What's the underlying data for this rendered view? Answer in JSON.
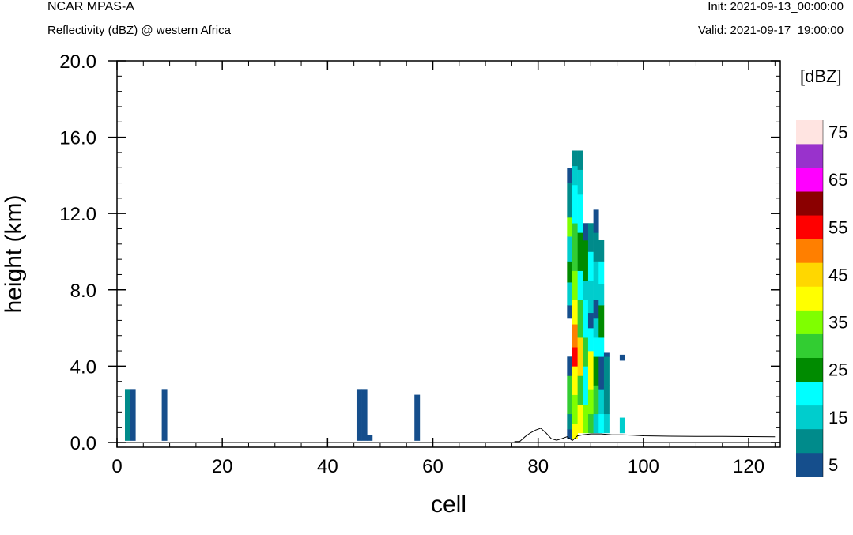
{
  "header": {
    "model": "NCAR MPAS-A",
    "field": "Reflectivity (dBZ) @ western Africa",
    "init": "Init: 2021-09-13_00:00:00",
    "valid": "Valid: 2021-09-17_19:00:00"
  },
  "chart_data": {
    "type": "heatmap",
    "title": "Reflectivity (dBZ) @ western Africa",
    "xlabel": "cell",
    "ylabel": "height (km)",
    "xlim": [
      0,
      126
    ],
    "ylim": [
      -0.25,
      20
    ],
    "xticks": [
      "0",
      "20",
      "40",
      "60",
      "80",
      "100",
      "120"
    ],
    "yticks": [
      "0.0",
      "4.0",
      "8.0",
      "12.0",
      "16.0",
      "20.0"
    ],
    "xtick_values": [
      0,
      20,
      40,
      60,
      80,
      100,
      120
    ],
    "ytick_values": [
      0,
      4,
      8,
      12,
      16,
      20
    ],
    "colorbar": {
      "unit": "[dBZ]",
      "levels": [
        5,
        10,
        15,
        20,
        25,
        30,
        35,
        40,
        45,
        50,
        55,
        60,
        65,
        70,
        75
      ],
      "colors": [
        "#154e8c",
        "#008b8b",
        "#00cdcd",
        "#00ffff",
        "#008b00",
        "#32cd32",
        "#7fff00",
        "#ffff00",
        "#ffd700",
        "#ff7f00",
        "#ff0000",
        "#8b0000",
        "#ff00ff",
        "#9932cc",
        "#ffe4e1"
      ],
      "labels": [
        "5",
        "15",
        "25",
        "35",
        "45",
        "55",
        "65",
        "75"
      ]
    },
    "terrain": [
      [
        75.5,
        0.05
      ],
      [
        76.5,
        0.05
      ],
      [
        77.5,
        0.3
      ],
      [
        78.5,
        0.5
      ],
      [
        79.5,
        0.65
      ],
      [
        80.5,
        0.75
      ],
      [
        81.5,
        0.5
      ],
      [
        82.5,
        0.2
      ],
      [
        83.5,
        0.12
      ],
      [
        84.5,
        0.2
      ],
      [
        85.5,
        0.3
      ],
      [
        86.5,
        0.1
      ],
      [
        87.5,
        0.35
      ],
      [
        88.5,
        0.4
      ],
      [
        90,
        0.45
      ],
      [
        92,
        0.45
      ],
      [
        94,
        0.4
      ],
      [
        96,
        0.4
      ],
      [
        98,
        0.38
      ],
      [
        100,
        0.35
      ],
      [
        105,
        0.33
      ],
      [
        110,
        0.32
      ],
      [
        115,
        0.32
      ],
      [
        120,
        0.31
      ],
      [
        125,
        0.3
      ]
    ],
    "cells": [
      [
        2,
        0.1,
        2.8,
        1
      ],
      [
        3,
        0.1,
        2.8,
        0
      ],
      [
        9,
        0.1,
        2.8,
        0
      ],
      [
        46,
        0.1,
        2.8,
        0
      ],
      [
        47,
        0.1,
        2.8,
        0
      ],
      [
        48,
        0.1,
        0.4,
        0
      ],
      [
        57,
        0.1,
        2.5,
        0
      ],
      [
        86,
        0.2,
        0.7,
        0
      ],
      [
        86,
        0.7,
        1.5,
        1
      ],
      [
        86,
        1.5,
        3.5,
        5
      ],
      [
        86,
        3.5,
        4.5,
        0
      ],
      [
        86,
        6.5,
        7.2,
        0
      ],
      [
        86,
        7.2,
        8.4,
        2
      ],
      [
        86,
        8.4,
        9.5,
        4
      ],
      [
        86,
        9.5,
        10.8,
        2
      ],
      [
        86,
        10.8,
        11.8,
        6
      ],
      [
        86,
        11.8,
        13.6,
        1
      ],
      [
        86,
        13.6,
        14.4,
        0
      ],
      [
        87,
        0.2,
        1.0,
        7
      ],
      [
        87,
        1.0,
        2.5,
        6
      ],
      [
        87,
        2.5,
        4.0,
        7
      ],
      [
        87,
        4.0,
        5.0,
        10
      ],
      [
        87,
        5.0,
        6.2,
        9
      ],
      [
        87,
        6.2,
        7.5,
        7
      ],
      [
        87,
        7.5,
        9.0,
        6
      ],
      [
        87,
        9.0,
        11.5,
        5
      ],
      [
        87,
        11.5,
        13.5,
        3
      ],
      [
        87,
        13.5,
        14.5,
        2
      ],
      [
        87,
        14.5,
        15.3,
        1
      ],
      [
        88,
        0.5,
        2.0,
        7
      ],
      [
        88,
        2.0,
        3.5,
        5
      ],
      [
        88,
        3.5,
        5.5,
        8
      ],
      [
        88,
        5.5,
        7.5,
        5
      ],
      [
        88,
        7.5,
        9.0,
        3
      ],
      [
        88,
        9.0,
        11.0,
        4
      ],
      [
        88,
        11.0,
        13.0,
        3
      ],
      [
        88,
        13.0,
        14.3,
        2
      ],
      [
        88,
        14.3,
        15.3,
        1
      ],
      [
        89,
        0.5,
        2.0,
        6
      ],
      [
        89,
        2.0,
        4.0,
        3
      ],
      [
        89,
        4.0,
        5.5,
        5
      ],
      [
        89,
        5.5,
        7.5,
        3
      ],
      [
        89,
        7.5,
        8.5,
        2
      ],
      [
        89,
        8.5,
        10.6,
        4
      ],
      [
        89,
        10.6,
        11.5,
        0
      ],
      [
        90,
        0.5,
        1.5,
        5
      ],
      [
        90,
        1.5,
        2.8,
        6
      ],
      [
        90,
        2.8,
        4.8,
        7
      ],
      [
        90,
        4.8,
        6.0,
        3
      ],
      [
        90,
        6.0,
        6.8,
        0
      ],
      [
        90,
        6.8,
        8.5,
        2
      ],
      [
        90,
        8.5,
        10.0,
        3
      ],
      [
        90,
        10.0,
        11.5,
        1
      ],
      [
        91,
        0.5,
        1.5,
        2
      ],
      [
        91,
        1.5,
        3.0,
        5
      ],
      [
        91,
        3.0,
        4.5,
        4
      ],
      [
        91,
        4.5,
        5.5,
        3
      ],
      [
        91,
        5.5,
        6.5,
        2
      ],
      [
        91,
        6.5,
        7.5,
        0
      ],
      [
        91,
        7.5,
        9.5,
        2
      ],
      [
        91,
        9.5,
        11.0,
        1
      ],
      [
        91,
        11.0,
        12.2,
        0
      ],
      [
        92,
        0.5,
        1.5,
        3
      ],
      [
        92,
        1.5,
        2.8,
        2
      ],
      [
        92,
        2.8,
        4.5,
        0
      ],
      [
        92,
        4.5,
        5.5,
        3
      ],
      [
        92,
        5.5,
        7.2,
        4
      ],
      [
        92,
        7.2,
        8.3,
        2
      ],
      [
        92,
        8.3,
        9.5,
        3
      ],
      [
        92,
        9.5,
        10.6,
        1
      ],
      [
        93,
        0.5,
        1.5,
        2
      ],
      [
        93,
        1.5,
        3.0,
        1
      ],
      [
        93,
        3.0,
        4.5,
        1
      ],
      [
        93,
        4.5,
        4.7,
        0
      ],
      [
        96,
        0.5,
        1.3,
        2
      ],
      [
        96,
        4.3,
        4.6,
        0
      ]
    ]
  }
}
